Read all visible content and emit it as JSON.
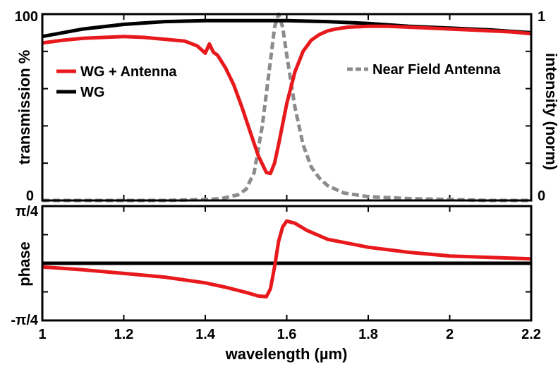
{
  "chart_data": [
    {
      "type": "line",
      "panel": "top",
      "xlabel": "",
      "ylabel": "transmission %",
      "y2label": "intensity (norm)",
      "xlim": [
        1.0,
        2.2
      ],
      "ylim": [
        0,
        100
      ],
      "y2lim": [
        0,
        1
      ],
      "y_ticks": [
        0,
        100
      ],
      "y2_ticks": [
        0,
        1
      ],
      "y_tick_labels": [
        "0",
        "100"
      ],
      "y2_tick_labels": [
        "0",
        "1"
      ],
      "series": [
        {
          "name": "WG + Antenna",
          "axis": "left",
          "color": "#e8191c",
          "style": "solid",
          "x": [
            1.0,
            1.05,
            1.1,
            1.15,
            1.2,
            1.25,
            1.3,
            1.35,
            1.38,
            1.4,
            1.41,
            1.42,
            1.43,
            1.45,
            1.47,
            1.49,
            1.51,
            1.53,
            1.55,
            1.56,
            1.57,
            1.58,
            1.6,
            1.62,
            1.64,
            1.66,
            1.68,
            1.7,
            1.72,
            1.75,
            1.8,
            1.85,
            1.9,
            1.95,
            2.0,
            2.05,
            2.1,
            2.15,
            2.2
          ],
          "values": [
            84.5,
            86.0,
            87.0,
            87.5,
            88.0,
            87.5,
            86.5,
            85.5,
            83.0,
            79.0,
            84.0,
            79.5,
            78.0,
            71.0,
            62.0,
            50.0,
            37.0,
            24.0,
            15.0,
            14.5,
            20.0,
            30.0,
            52.0,
            69.0,
            80.0,
            86.0,
            89.0,
            91.0,
            92.0,
            93.0,
            93.5,
            93.5,
            93.0,
            92.5,
            92.0,
            91.5,
            91.0,
            90.5,
            89.5
          ]
        },
        {
          "name": "WG",
          "axis": "left",
          "color": "#000000",
          "style": "solid",
          "x": [
            1.0,
            1.1,
            1.2,
            1.3,
            1.4,
            1.5,
            1.6,
            1.7,
            1.8,
            1.9,
            2.0,
            2.1,
            2.2
          ],
          "values": [
            88.0,
            92.0,
            94.5,
            96.0,
            96.5,
            96.5,
            96.5,
            96.0,
            95.0,
            93.5,
            92.5,
            91.5,
            90.0
          ]
        },
        {
          "name": "Near Field Antenna",
          "axis": "right",
          "color": "#8c8c8c",
          "style": "dashed",
          "x": [
            1.0,
            1.1,
            1.2,
            1.3,
            1.4,
            1.44,
            1.48,
            1.5,
            1.52,
            1.54,
            1.56,
            1.57,
            1.58,
            1.59,
            1.6,
            1.62,
            1.64,
            1.66,
            1.68,
            1.7,
            1.74,
            1.8,
            1.9,
            2.0,
            2.1,
            2.2
          ],
          "values": [
            0.0,
            0.0,
            0.0,
            0.0,
            0.005,
            0.01,
            0.03,
            0.06,
            0.15,
            0.4,
            0.75,
            0.93,
            1.0,
            0.93,
            0.78,
            0.5,
            0.3,
            0.18,
            0.12,
            0.08,
            0.04,
            0.02,
            0.01,
            0.005,
            0.0,
            0.0
          ]
        }
      ],
      "legend": {
        "left_placement": "top-left",
        "right_placement": "top-right"
      }
    },
    {
      "type": "line",
      "panel": "bottom",
      "xlabel": "wavelength (µm)",
      "ylabel": "phase",
      "xlim": [
        1.0,
        2.2
      ],
      "x_ticks": [
        1.0,
        1.2,
        1.4,
        1.6,
        1.8,
        2.0,
        2.2
      ],
      "x_tick_labels": [
        "1",
        "1.2",
        "1.4",
        "1.6",
        "1.8",
        "2",
        "2.2"
      ],
      "ylim": [
        -0.7854,
        0.7854
      ],
      "y_ticks": [
        -0.7854,
        0.7854
      ],
      "y_tick_labels": [
        "-π/4",
        "π/4"
      ],
      "series": [
        {
          "color": "#e8191c",
          "style": "solid",
          "x": [
            1.0,
            1.1,
            1.2,
            1.3,
            1.4,
            1.45,
            1.5,
            1.53,
            1.55,
            1.56,
            1.57,
            1.58,
            1.59,
            1.6,
            1.62,
            1.65,
            1.7,
            1.8,
            1.9,
            2.0,
            2.1,
            2.2
          ],
          "values": [
            -0.05,
            -0.09,
            -0.14,
            -0.19,
            -0.27,
            -0.33,
            -0.4,
            -0.45,
            -0.46,
            -0.35,
            -0.05,
            0.3,
            0.5,
            0.58,
            0.55,
            0.45,
            0.33,
            0.22,
            0.15,
            0.1,
            0.08,
            0.06
          ]
        },
        {
          "color": "#000000",
          "style": "solid",
          "x": [
            1.0,
            2.2
          ],
          "values": [
            0.0,
            0.0
          ]
        }
      ]
    }
  ],
  "legend_labels": {
    "wg_antenna": "WG + Antenna",
    "wg": "WG",
    "near_field": "Near Field Antenna"
  },
  "colors": {
    "red": "#e8191c",
    "black": "#000000",
    "gray": "#8c8c8c"
  }
}
